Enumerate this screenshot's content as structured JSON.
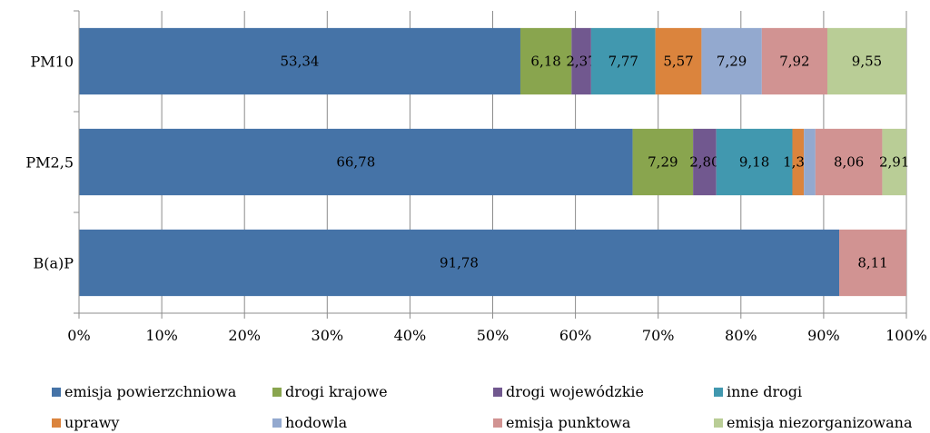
{
  "chart_data": {
    "type": "bar",
    "orientation": "horizontal",
    "stacked": "percent",
    "categories": [
      "PM10",
      "PM2,5",
      "B(a)P"
    ],
    "series": [
      {
        "name": "emisja powierzchniowa",
        "color": "#4573a7",
        "values": [
          53.34,
          66.78,
          91.78
        ],
        "labels": [
          "53,34",
          "66,78",
          "91,78"
        ]
      },
      {
        "name": "drogi krajowe",
        "color": "#89a54e",
        "values": [
          6.18,
          7.29,
          0
        ],
        "labels": [
          "6,18",
          "7,29",
          ""
        ]
      },
      {
        "name": "drogi wojewódzkie",
        "color": "#71588f",
        "values": [
          2.37,
          2.8,
          0
        ],
        "labels": [
          "2,37",
          "2,80",
          ""
        ]
      },
      {
        "name": "inne drogi",
        "color": "#4198af",
        "values": [
          7.77,
          9.18,
          0
        ],
        "labels": [
          "7,77",
          "9,18",
          ""
        ]
      },
      {
        "name": "uprawy",
        "color": "#db843d",
        "values": [
          5.57,
          1.39,
          0
        ],
        "labels": [
          "5,57",
          "1,39",
          ""
        ]
      },
      {
        "name": "hodowla",
        "color": "#93a9cf",
        "values": [
          7.29,
          1.39,
          0
        ],
        "labels": [
          "7,29",
          "",
          ""
        ]
      },
      {
        "name": "emisja punktowa",
        "color": "#d19392",
        "values": [
          7.92,
          8.06,
          8.11
        ],
        "labels": [
          "7,92",
          "8,06",
          "8,11"
        ]
      },
      {
        "name": "emisja niezorganizowana",
        "color": "#b9cd96",
        "values": [
          9.55,
          2.91,
          0
        ],
        "labels": [
          "9,55",
          "2,91",
          ""
        ]
      }
    ],
    "xlim": [
      0,
      100
    ],
    "xticks": [
      "0%",
      "10%",
      "20%",
      "30%",
      "40%",
      "50%",
      "60%",
      "70%",
      "80%",
      "90%",
      "100%"
    ],
    "grid": true,
    "legend_position": "bottom"
  }
}
